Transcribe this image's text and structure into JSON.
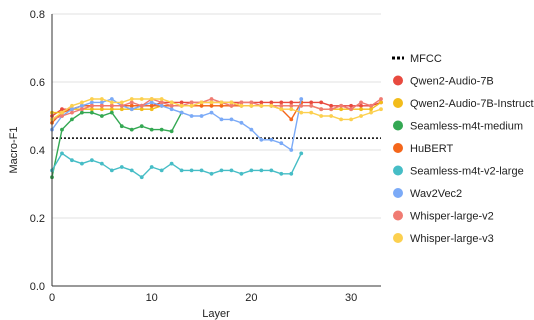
{
  "chart_data": {
    "type": "line",
    "title": "",
    "xlabel": "Layer",
    "ylabel": "Macro-F1",
    "xlim": [
      0,
      33
    ],
    "ylim": [
      0.0,
      0.8
    ],
    "x_ticks": [
      0,
      10,
      20,
      30
    ],
    "y_ticks": [
      "0.0",
      "0.2",
      "0.4",
      "0.6",
      "0.8"
    ],
    "grid": "horizontal",
    "legend_position": "right",
    "reference_lines": [
      {
        "name": "MFCC",
        "value": 0.435,
        "color": "#000000",
        "style": "dotted"
      }
    ],
    "series": [
      {
        "name": "Qwen2-Audio-7B",
        "color": "#e84a3f",
        "x": [
          0,
          1,
          2,
          3,
          4,
          5,
          6,
          7,
          8,
          9,
          10,
          11,
          12,
          13,
          14,
          15,
          16,
          17,
          18,
          19,
          20,
          21,
          22,
          23,
          24,
          25,
          26,
          27,
          28,
          29,
          30,
          31,
          32,
          33
        ],
        "values": [
          0.5,
          0.52,
          0.52,
          0.53,
          0.53,
          0.53,
          0.53,
          0.53,
          0.53,
          0.53,
          0.53,
          0.54,
          0.54,
          0.54,
          0.54,
          0.54,
          0.54,
          0.54,
          0.54,
          0.54,
          0.54,
          0.54,
          0.54,
          0.54,
          0.54,
          0.54,
          0.54,
          0.54,
          0.53,
          0.53,
          0.53,
          0.53,
          0.53,
          0.54
        ]
      },
      {
        "name": "Qwen2-Audio-7B-Instruct",
        "color": "#f2bc1b",
        "x": [
          0,
          1,
          2,
          3,
          4,
          5,
          6,
          7,
          8,
          9,
          10,
          11,
          12,
          13,
          14,
          15,
          16,
          17,
          18,
          19,
          20,
          21,
          22,
          23,
          24,
          25,
          26,
          27,
          28,
          29,
          30,
          31,
          32,
          33
        ],
        "values": [
          0.51,
          0.51,
          0.52,
          0.52,
          0.52,
          0.52,
          0.52,
          0.52,
          0.52,
          0.52,
          0.52,
          0.53,
          0.53,
          0.53,
          0.53,
          0.53,
          0.53,
          0.53,
          0.53,
          0.53,
          0.53,
          0.53,
          0.53,
          0.53,
          0.53,
          0.53,
          0.53,
          0.52,
          0.52,
          0.52,
          0.52,
          0.52,
          0.52,
          0.54
        ]
      },
      {
        "name": "Seamless-m4t-medium",
        "color": "#34a853",
        "x": [
          0,
          1,
          2,
          3,
          4,
          5,
          6,
          7,
          8,
          9,
          10,
          11,
          12,
          13
        ],
        "values": [
          0.32,
          0.46,
          0.49,
          0.51,
          0.51,
          0.5,
          0.51,
          0.47,
          0.46,
          0.47,
          0.46,
          0.46,
          0.455,
          0.51
        ]
      },
      {
        "name": "HuBERT",
        "color": "#f4661b",
        "x": [
          0,
          1,
          2,
          3,
          4,
          5,
          6,
          7,
          8,
          9,
          10,
          11,
          12,
          13,
          14,
          15,
          16,
          17,
          18,
          19,
          20,
          21,
          22,
          23,
          24,
          25
        ],
        "values": [
          0.48,
          0.51,
          0.52,
          0.53,
          0.53,
          0.53,
          0.53,
          0.53,
          0.53,
          0.53,
          0.53,
          0.53,
          0.53,
          0.53,
          0.53,
          0.53,
          0.53,
          0.53,
          0.53,
          0.53,
          0.53,
          0.53,
          0.53,
          0.52,
          0.49,
          0.54
        ]
      },
      {
        "name": "Seamless-m4t-v2-large",
        "color": "#46bdc6",
        "x": [
          0,
          1,
          2,
          3,
          4,
          5,
          6,
          7,
          8,
          9,
          10,
          11,
          12,
          13,
          14,
          15,
          16,
          17,
          18,
          19,
          20,
          21,
          22,
          23,
          24,
          25
        ],
        "values": [
          0.34,
          0.39,
          0.37,
          0.36,
          0.37,
          0.36,
          0.34,
          0.35,
          0.34,
          0.32,
          0.35,
          0.34,
          0.36,
          0.34,
          0.34,
          0.34,
          0.33,
          0.34,
          0.34,
          0.33,
          0.34,
          0.34,
          0.34,
          0.33,
          0.33,
          0.39
        ]
      },
      {
        "name": "Wav2Vec2",
        "color": "#7baaf7",
        "x": [
          0,
          1,
          2,
          3,
          4,
          5,
          6,
          7,
          8,
          9,
          10,
          11,
          12,
          13,
          14,
          15,
          16,
          17,
          18,
          19,
          20,
          21,
          22,
          23,
          24,
          25
        ],
        "values": [
          0.46,
          0.5,
          0.52,
          0.53,
          0.54,
          0.54,
          0.55,
          0.53,
          0.52,
          0.53,
          0.54,
          0.53,
          0.52,
          0.51,
          0.5,
          0.5,
          0.51,
          0.49,
          0.49,
          0.48,
          0.46,
          0.43,
          0.43,
          0.42,
          0.4,
          0.55
        ]
      },
      {
        "name": "Whisper-large-v2",
        "color": "#f07b72",
        "x": [
          0,
          1,
          2,
          3,
          4,
          5,
          6,
          7,
          8,
          9,
          10,
          11,
          12,
          13,
          14,
          15,
          16,
          17,
          18,
          19,
          20,
          21,
          22,
          23,
          24,
          25,
          26,
          27,
          28,
          29,
          30,
          31,
          32,
          33
        ],
        "values": [
          0.49,
          0.5,
          0.51,
          0.52,
          0.53,
          0.53,
          0.53,
          0.53,
          0.54,
          0.53,
          0.55,
          0.54,
          0.53,
          0.53,
          0.54,
          0.54,
          0.55,
          0.54,
          0.53,
          0.54,
          0.54,
          0.53,
          0.53,
          0.53,
          0.53,
          0.53,
          0.53,
          0.52,
          0.52,
          0.53,
          0.52,
          0.54,
          0.53,
          0.55
        ]
      },
      {
        "name": "Whisper-large-v3",
        "color": "#fcd04f",
        "x": [
          0,
          1,
          2,
          3,
          4,
          5,
          6,
          7,
          8,
          9,
          10,
          11,
          12,
          13,
          14,
          15,
          16,
          17,
          18,
          19,
          20,
          21,
          22,
          23,
          24,
          25,
          26,
          27,
          28,
          29,
          30,
          31,
          32,
          33
        ],
        "values": [
          0.49,
          0.51,
          0.53,
          0.54,
          0.55,
          0.55,
          0.54,
          0.54,
          0.55,
          0.55,
          0.55,
          0.55,
          0.54,
          0.53,
          0.53,
          0.54,
          0.54,
          0.54,
          0.54,
          0.53,
          0.53,
          0.53,
          0.53,
          0.52,
          0.52,
          0.51,
          0.51,
          0.5,
          0.5,
          0.49,
          0.49,
          0.5,
          0.51,
          0.52
        ]
      }
    ]
  }
}
